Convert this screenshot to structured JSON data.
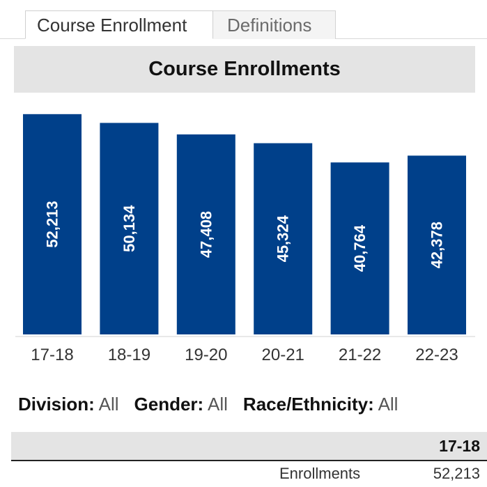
{
  "tabs": [
    {
      "label": "Course Enrollment",
      "active": true
    },
    {
      "label": "Definitions",
      "active": false
    }
  ],
  "header": {
    "title": "Course Enrollments"
  },
  "chart_data": {
    "type": "bar",
    "title": "Course Enrollments",
    "categories": [
      "17-18",
      "18-19",
      "19-20",
      "20-21",
      "21-22",
      "22-23"
    ],
    "values": [
      52213,
      50134,
      47408,
      45324,
      40764,
      42378
    ],
    "labels": [
      "52,213",
      "50,134",
      "47,408",
      "45,324",
      "40,764",
      "42,378"
    ],
    "xlabel": "",
    "ylabel": "",
    "ylim": [
      0,
      54000
    ],
    "grid": false,
    "bar_color": "#00408a",
    "label_color": "#ffffff",
    "label_orientation": "vertical"
  },
  "filters": [
    {
      "name": "Division",
      "value": "All"
    },
    {
      "name": "Gender",
      "value": "All"
    },
    {
      "name": "Race/Ethnicity",
      "value": "All"
    }
  ],
  "table": {
    "column_header": "17-18",
    "row_label": "Enrollments",
    "row_value": "52,213"
  },
  "colors": {
    "bar": "#00408a",
    "title_band": "#e4e4e4"
  }
}
